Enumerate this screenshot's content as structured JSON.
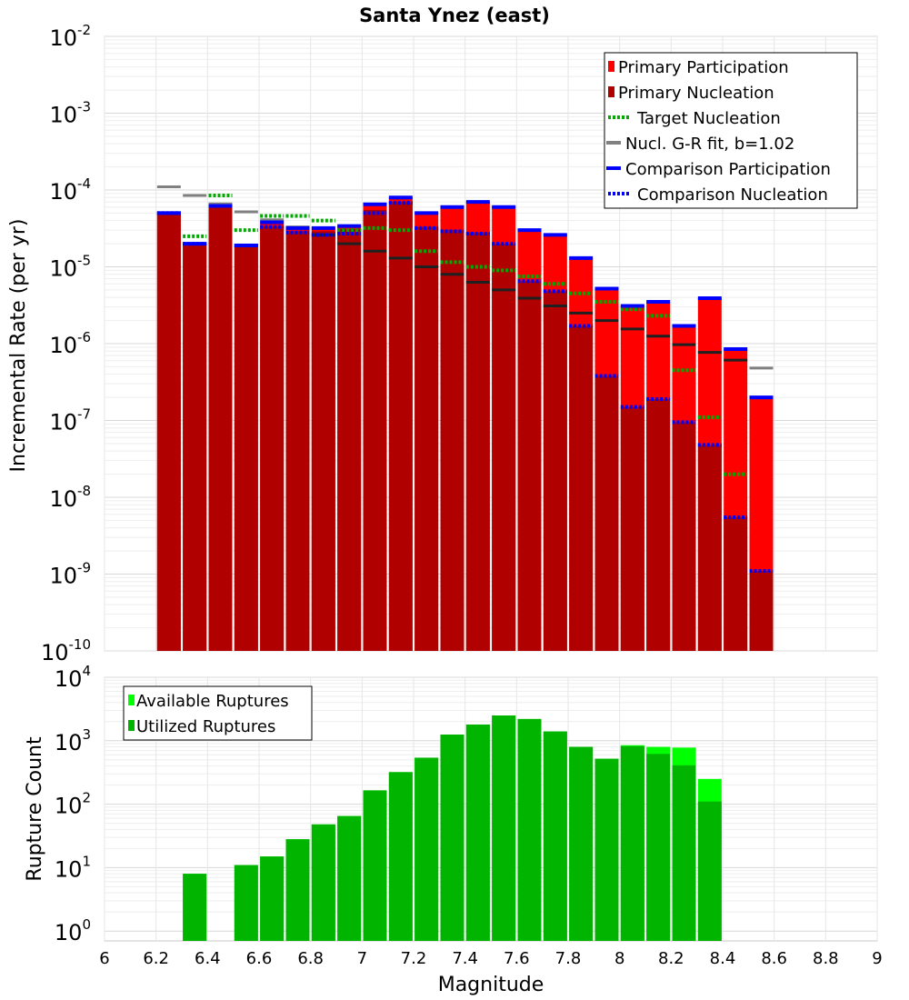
{
  "chart_data": [
    {
      "type": "bar",
      "title": "Santa Ynez (east)",
      "xlabel": "",
      "ylabel": "Incremental Rate (per yr)",
      "yscale": "log",
      "ylim": [
        1e-10,
        0.01
      ],
      "xlim": [
        6,
        9
      ],
      "ytick_labels": [
        {
          "base": "10",
          "exp": "-10"
        },
        {
          "base": "10",
          "exp": "-9"
        },
        {
          "base": "10",
          "exp": "-8"
        },
        {
          "base": "10",
          "exp": "-7"
        },
        {
          "base": "10",
          "exp": "-6"
        },
        {
          "base": "10",
          "exp": "-5"
        },
        {
          "base": "10",
          "exp": "-4"
        },
        {
          "base": "10",
          "exp": "-3"
        },
        {
          "base": "10",
          "exp": "-2"
        }
      ],
      "legend_position": "top-right",
      "legend": [
        "Primary Participation",
        "Primary Nucleation",
        "Target Nucleation",
        "Nucl. G-R fit, b=1.02",
        "Comparison Participation",
        "Comparison Nucleation"
      ],
      "x": [
        6.25,
        6.35,
        6.45,
        6.55,
        6.65,
        6.75,
        6.85,
        6.95,
        7.05,
        7.15,
        7.25,
        7.35,
        7.45,
        7.55,
        7.65,
        7.75,
        7.85,
        7.95,
        8.05,
        8.15,
        8.25,
        8.35,
        8.45,
        8.55
      ],
      "series": [
        {
          "name": "Primary Participation",
          "color": "#ff0000",
          "values": [
            5e-05,
            2e-05,
            6.2e-05,
            1.9e-05,
            3.8e-05,
            3.2e-05,
            3.2e-05,
            3.4e-05,
            6.5e-05,
            8e-05,
            5e-05,
            6e-05,
            7e-05,
            6e-05,
            3e-05,
            2.6e-05,
            1.3e-05,
            5.2e-06,
            3.1e-06,
            3.5e-06,
            1.7e-06,
            3.9e-06,
            8.5e-07,
            2e-07
          ]
        },
        {
          "name": "Primary Nucleation",
          "color": "#b00000",
          "values": [
            5e-05,
            2e-05,
            6.2e-05,
            1.9e-05,
            3.4e-05,
            2.9e-05,
            2.9e-05,
            3.1e-05,
            5.5e-05,
            7e-05,
            3.3e-05,
            3e-05,
            2.8e-05,
            2e-05,
            6.5e-06,
            4.8e-06,
            1.7e-06,
            3.8e-07,
            1.5e-07,
            1.9e-07,
            9.5e-08,
            4.8e-08,
            5.5e-09,
            1.1e-09
          ]
        },
        {
          "name": "Target Nucleation",
          "color": "#00aa00",
          "values": [
            null,
            2.5e-05,
            8.5e-05,
            3e-05,
            4.6e-05,
            4.6e-05,
            4e-05,
            3e-05,
            3.2e-05,
            3e-05,
            1.6e-05,
            1.15e-05,
            1e-05,
            9e-06,
            7.5e-06,
            6e-06,
            4.5e-06,
            3.5e-06,
            2.8e-06,
            2.3e-06,
            4.5e-07,
            1.1e-07,
            2e-08,
            null
          ]
        },
        {
          "name": "Nucl. G-R fit, b=1.02",
          "color": "#808080",
          "inner_color": "#202020",
          "values": [
            0.00011,
            8.5e-05,
            6.6e-05,
            5.2e-05,
            4.1e-05,
            3.3e-05,
            2.6e-05,
            2e-05,
            1.6e-05,
            1.3e-05,
            1e-05,
            8e-06,
            6.3e-06,
            5e-06,
            3.9e-06,
            3.1e-06,
            2.5e-06,
            2e-06,
            1.55e-06,
            1.25e-06,
            9.7e-07,
            7.7e-07,
            6.1e-07,
            4.8e-07
          ]
        },
        {
          "name": "Comparison Participation",
          "color": "#0000ff",
          "values": [
            5e-05,
            2e-05,
            6.2e-05,
            1.9e-05,
            3.8e-05,
            3.2e-05,
            3.2e-05,
            3.4e-05,
            6.5e-05,
            8e-05,
            5e-05,
            6e-05,
            7e-05,
            6e-05,
            3e-05,
            2.6e-05,
            1.3e-05,
            5.2e-06,
            3.1e-06,
            3.5e-06,
            1.7e-06,
            3.9e-06,
            8.5e-07,
            2e-07
          ]
        },
        {
          "name": "Comparison Nucleation",
          "color": "#0000ff",
          "values": [
            5e-05,
            2e-05,
            6.2e-05,
            1.9e-05,
            3.3e-05,
            2.8e-05,
            2.6e-05,
            2.7e-05,
            5e-05,
            6.8e-05,
            3.2e-05,
            2.9e-05,
            2.7e-05,
            2e-05,
            6.5e-06,
            4.8e-06,
            1.7e-06,
            3.8e-07,
            1.5e-07,
            1.9e-07,
            9.5e-08,
            4.8e-08,
            5.5e-09,
            1.1e-09
          ]
        }
      ]
    },
    {
      "type": "bar",
      "xlabel": "Magnitude",
      "ylabel": "Rupture Count",
      "yscale": "log",
      "ylim": [
        0.7,
        10000
      ],
      "xlim": [
        6,
        9
      ],
      "xtick_labels": [
        "6",
        "6.2",
        "6.4",
        "6.6",
        "6.8",
        "7",
        "7.2",
        "7.4",
        "7.6",
        "7.8",
        "8",
        "8.2",
        "8.4",
        "8.6",
        "8.8",
        "9"
      ],
      "ytick_labels": [
        {
          "base": "10",
          "exp": "0"
        },
        {
          "base": "10",
          "exp": "1"
        },
        {
          "base": "10",
          "exp": "2"
        },
        {
          "base": "10",
          "exp": "3"
        },
        {
          "base": "10",
          "exp": "4"
        }
      ],
      "legend_position": "top-left",
      "legend": [
        "Available Ruptures",
        "Utilized Ruptures"
      ],
      "x": [
        6.25,
        6.35,
        6.45,
        6.55,
        6.65,
        6.75,
        6.85,
        6.95,
        7.05,
        7.15,
        7.25,
        7.35,
        7.45,
        7.55,
        7.65,
        7.75,
        7.85,
        7.95,
        8.05,
        8.15,
        8.25,
        8.35
      ],
      "series": [
        {
          "name": "Available Ruptures",
          "color": "#00ff00",
          "values": [
            null,
            8,
            null,
            11,
            15,
            28,
            48,
            65,
            165,
            320,
            540,
            1250,
            1800,
            2500,
            2200,
            1400,
            800,
            520,
            850,
            800,
            780,
            250
          ]
        },
        {
          "name": "Utilized Ruptures",
          "color": "#00b400",
          "values": [
            null,
            8,
            null,
            11,
            15,
            28,
            48,
            65,
            165,
            320,
            540,
            1250,
            1800,
            2500,
            2200,
            1400,
            800,
            520,
            820,
            620,
            410,
            110
          ]
        }
      ]
    }
  ]
}
